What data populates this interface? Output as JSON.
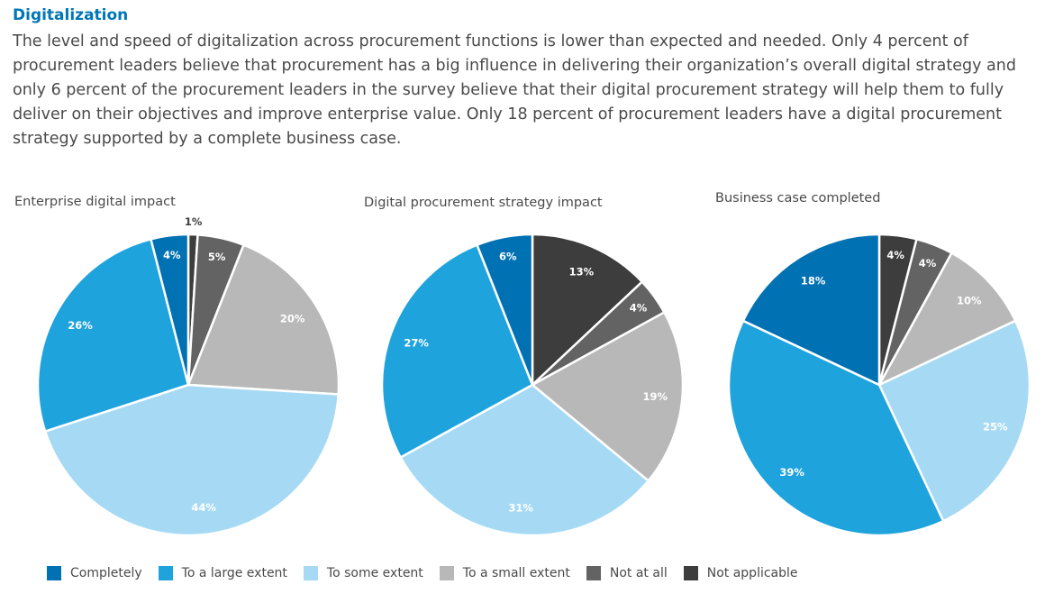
{
  "heading": "Digitalization",
  "intro": "The level and speed of digitalization across procurement functions is lower than expected and needed. Only 4 percent of procurement leaders believe that procurement has a big influence in delivering their organization’s overall digital strategy and only 6 percent of the procurement leaders in the survey believe that their digital procurement strategy will help them to fully deliver on their objectives and improve enterprise value. Only 18 percent of procurement leaders have a digital procurement strategy supported by a complete business case.",
  "legend": [
    {
      "label": "Completely",
      "color": "#0071b3"
    },
    {
      "label": "To a large extent",
      "color": "#1fa3dd"
    },
    {
      "label": "To some extent",
      "color": "#a6daf4"
    },
    {
      "label": "To a small extent",
      "color": "#b8b8b8"
    },
    {
      "label": "Not at all",
      "color": "#636363"
    },
    {
      "label": "Not applicable",
      "color": "#3d3d3d"
    }
  ],
  "chart_data": [
    {
      "type": "pie",
      "title": "Enterprise digital impact",
      "slices": [
        {
          "label": "Not applicable",
          "value": 1,
          "display": "1%",
          "color": "#3d3d3d"
        },
        {
          "label": "Not at all",
          "value": 5,
          "display": "5%",
          "color": "#636363"
        },
        {
          "label": "To a small extent",
          "value": 20,
          "display": "20%",
          "color": "#b8b8b8"
        },
        {
          "label": "To some extent",
          "value": 44,
          "display": "44%",
          "color": "#a6daf4"
        },
        {
          "label": "To a large extent",
          "value": 26,
          "display": "26%",
          "color": "#1fa3dd"
        },
        {
          "label": "Completely",
          "value": 4,
          "display": "4%",
          "color": "#0071b3"
        }
      ]
    },
    {
      "type": "pie",
      "title": "Digital procurement strategy impact",
      "slices": [
        {
          "label": "Not applicable",
          "value": 13,
          "display": "13%",
          "color": "#3d3d3d"
        },
        {
          "label": "Not at all",
          "value": 4,
          "display": "4%",
          "color": "#636363"
        },
        {
          "label": "To a small extent",
          "value": 19,
          "display": "19%",
          "color": "#b8b8b8"
        },
        {
          "label": "To some extent",
          "value": 31,
          "display": "31%",
          "color": "#a6daf4"
        },
        {
          "label": "To a large extent",
          "value": 27,
          "display": "27%",
          "color": "#1fa3dd"
        },
        {
          "label": "Completely",
          "value": 6,
          "display": "6%",
          "color": "#0071b3"
        }
      ]
    },
    {
      "type": "pie",
      "title": "Business case completed",
      "slices": [
        {
          "label": "Not applicable",
          "value": 4,
          "display": "4%",
          "color": "#3d3d3d"
        },
        {
          "label": "Not at all",
          "value": 4,
          "display": "4%",
          "color": "#636363"
        },
        {
          "label": "To a small extent",
          "value": 10,
          "display": "10%",
          "color": "#b8b8b8"
        },
        {
          "label": "To some extent",
          "value": 25,
          "display": "25%",
          "color": "#a6daf4"
        },
        {
          "label": "To a large extent",
          "value": 39,
          "display": "39%",
          "color": "#1fa3dd"
        },
        {
          "label": "Completely",
          "value": 18,
          "display": "18%",
          "color": "#0071b3"
        }
      ]
    }
  ]
}
